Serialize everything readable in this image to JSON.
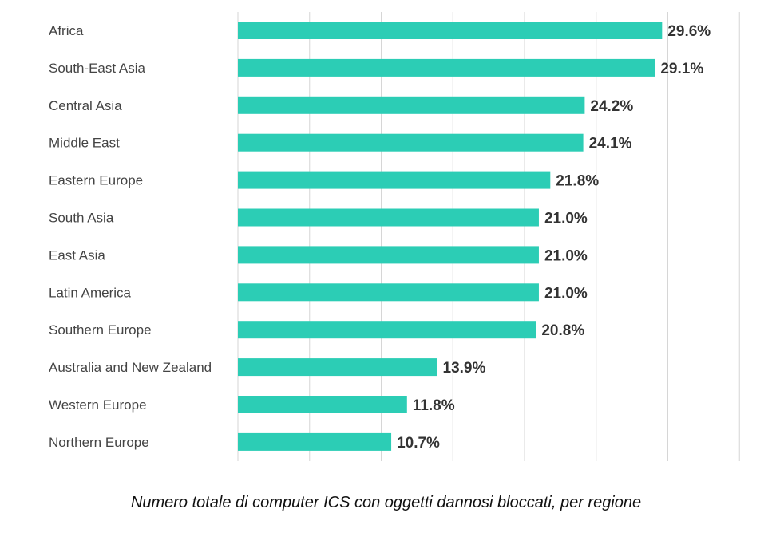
{
  "chart_data": {
    "type": "bar",
    "orientation": "horizontal",
    "title": "Numero totale di computer ICS con oggetti dannosi bloccati, per regione",
    "categories": [
      "Africa",
      "South-East Asia",
      "Central Asia",
      "Middle East",
      "Eastern Europe",
      "South Asia",
      "East Asia",
      "Latin America",
      "Southern Europe",
      "Australia and New Zealand",
      "Western Europe",
      "Northern Europe"
    ],
    "values": [
      29.6,
      29.1,
      24.2,
      24.1,
      21.8,
      21.0,
      21.0,
      21.0,
      20.8,
      13.9,
      11.8,
      10.7
    ],
    "value_labels": [
      "29.6%",
      "29.1%",
      "24.2%",
      "24.1%",
      "21.8%",
      "21.0%",
      "21.0%",
      "21.0%",
      "20.8%",
      "13.9%",
      "11.8%",
      "10.7%"
    ],
    "xlim": [
      0,
      35
    ],
    "grid": true,
    "bar_color": "#2ccdb5",
    "xlabel": "",
    "ylabel": ""
  }
}
